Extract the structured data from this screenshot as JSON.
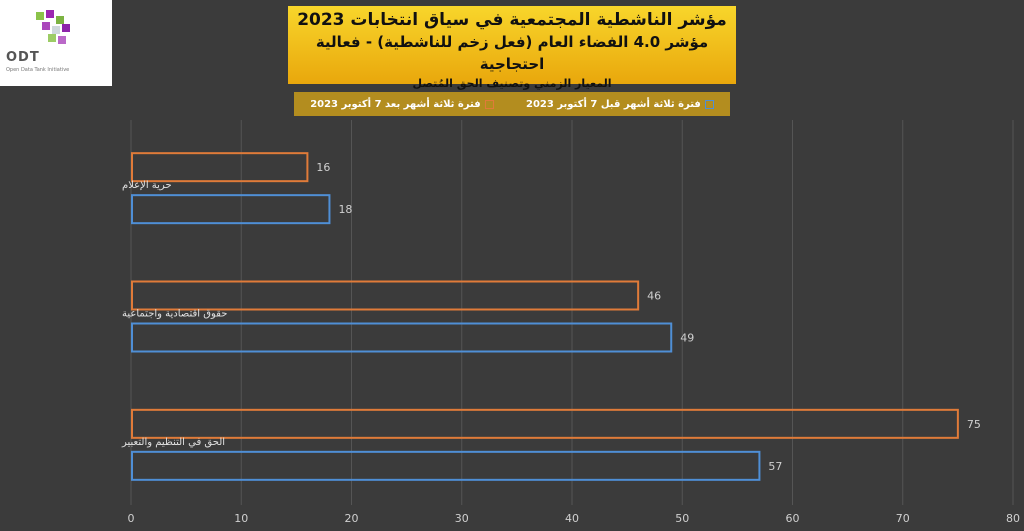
{
  "logo": {
    "text": "ODT",
    "subtitle": "Open Data Tank Initiative"
  },
  "chart_data": {
    "type": "bar",
    "orientation": "horizontal",
    "title": "مؤشر الناشطية المجتمعية في سياق انتخابات 2023",
    "subtitle": "مؤشر 4.0 الفضاء العام (فعل زخم للناشطية) - فعالية احتجاجية",
    "subtitle2": "المعيار الزمني وتصنيف الحق المُتصل",
    "categories": [
      "حرية الإعلام",
      "حقوق اقتصادية واجتماعية",
      "الحق في التنظيم والتعبير"
    ],
    "series": [
      {
        "name": "فترة ثلاثة أشهر بعد 7 أكتوبر 2023",
        "color": "#e07b39",
        "values": [
          16,
          46,
          75
        ]
      },
      {
        "name": "فترة ثلاثة أشهر قبل 7 أكتوبر 2023",
        "color": "#4f8fd6",
        "values": [
          18,
          49,
          57
        ]
      }
    ],
    "xlim": [
      0,
      80
    ],
    "xticks": [
      0,
      10,
      20,
      30,
      40,
      50,
      60,
      70,
      80
    ],
    "grid": true,
    "legend_position": "top"
  }
}
